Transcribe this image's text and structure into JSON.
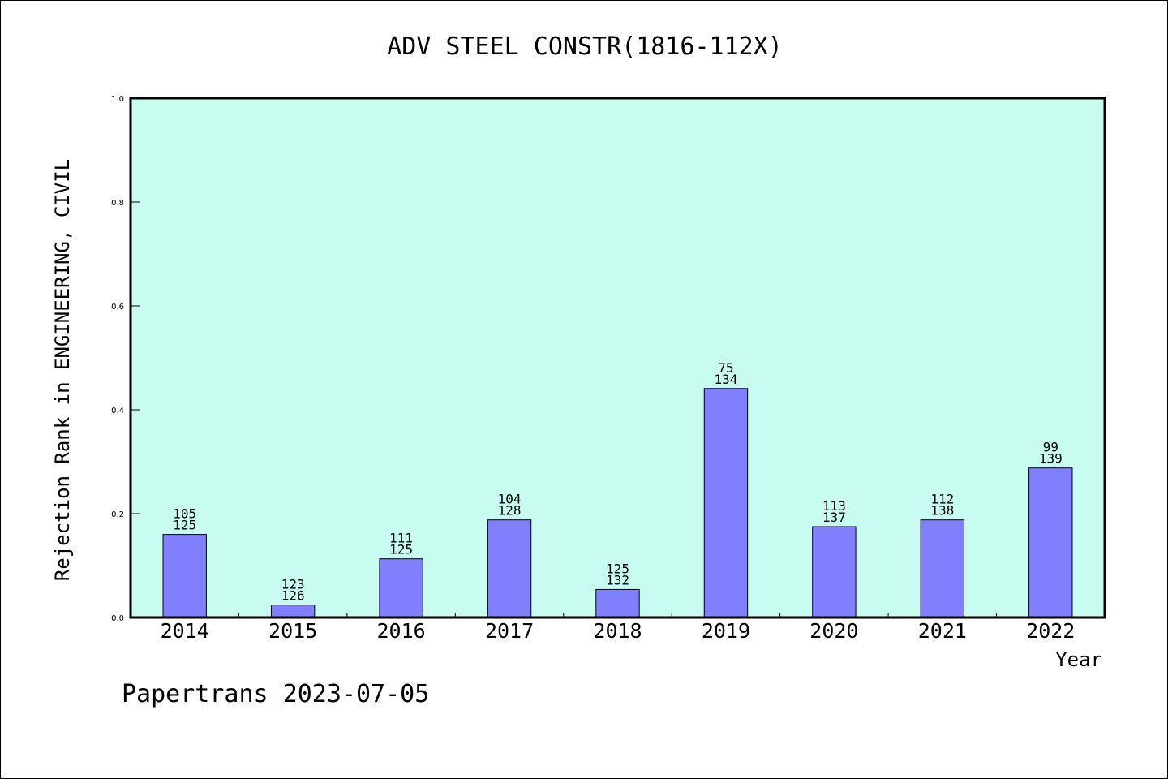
{
  "chart_data": {
    "type": "bar",
    "title": "ADV STEEL CONSTR(1816-112X)",
    "xlabel": "Year",
    "ylabel": "Rejection Rank in ENGINEERING, CIVIL",
    "ylim": [
      0,
      1.0
    ],
    "yticks": [
      "0.0",
      "0.2",
      "0.4",
      "0.6",
      "0.8",
      "1.0"
    ],
    "grid": false,
    "categories": [
      "2014",
      "2015",
      "2016",
      "2017",
      "2018",
      "2019",
      "2020",
      "2021",
      "2022"
    ],
    "values": [
      0.16,
      0.024,
      0.113,
      0.188,
      0.054,
      0.441,
      0.175,
      0.188,
      0.288
    ],
    "label_top": [
      "105",
      "123",
      "111",
      "104",
      "125",
      "75",
      "113",
      "112",
      "99"
    ],
    "label_bottom": [
      "125",
      "126",
      "125",
      "128",
      "132",
      "134",
      "137",
      "138",
      "139"
    ],
    "colors": {
      "plot_bg": "#c8fcf0",
      "bar": "#8080ff",
      "axis": "#000000"
    }
  },
  "footer": {
    "credit": "Papertrans 2023-07-05"
  }
}
